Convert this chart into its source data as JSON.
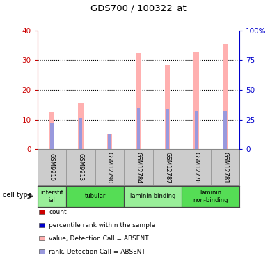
{
  "title": "GDS700 / 100322_at",
  "samples": [
    "GSM9910",
    "GSM9913",
    "GSM12790",
    "GSM12784",
    "GSM12787",
    "GSM12778",
    "GSM12781"
  ],
  "pink_bar_heights": [
    12.5,
    15.5,
    5.0,
    32.5,
    28.5,
    33.0,
    35.5
  ],
  "blue_bar_heights": [
    9.0,
    10.5,
    5.0,
    14.0,
    13.5,
    13.0,
    13.0
  ],
  "cell_types": [
    {
      "label": "interstit\nial",
      "start": 0,
      "end": 1,
      "color": "#99ee99"
    },
    {
      "label": "tubular",
      "start": 1,
      "end": 3,
      "color": "#55dd55"
    },
    {
      "label": "laminin binding",
      "start": 3,
      "end": 5,
      "color": "#99ee99"
    },
    {
      "label": "laminin\nnon-binding",
      "start": 5,
      "end": 7,
      "color": "#55dd55"
    }
  ],
  "ylim_left": [
    0,
    40
  ],
  "ylim_right": [
    0,
    100
  ],
  "yticks_left": [
    0,
    10,
    20,
    30,
    40
  ],
  "yticks_right": [
    0,
    25,
    50,
    75,
    100
  ],
  "ytick_labels_right": [
    "0",
    "25",
    "50",
    "75",
    "100%"
  ],
  "left_axis_color": "#cc0000",
  "right_axis_color": "#0000cc",
  "pink_color": "#ffb0b0",
  "blue_color": "#9999dd",
  "legend_items": [
    {
      "color": "#cc0000",
      "label": "count"
    },
    {
      "color": "#0000cc",
      "label": "percentile rank within the sample"
    },
    {
      "color": "#ffb0b0",
      "label": "value, Detection Call = ABSENT"
    },
    {
      "color": "#9999dd",
      "label": "rank, Detection Call = ABSENT"
    }
  ]
}
